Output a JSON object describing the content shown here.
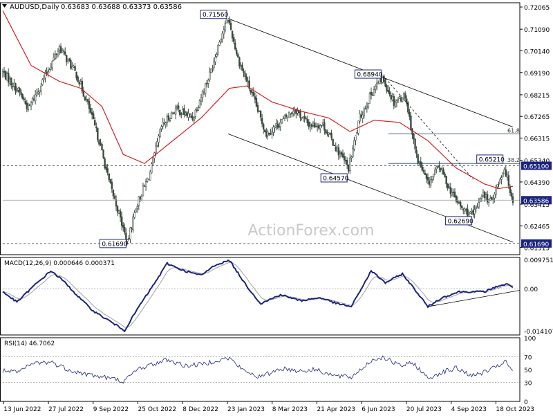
{
  "header": {
    "symbol_label": "AUDUSD,Daily",
    "ohlc_text": "0.63683 0.63688 0.63373 0.63586"
  },
  "watermark": "ActionForex.com",
  "colors": {
    "candle": "#3a4a3e",
    "ma": "#d62020",
    "macd": "#1a237e",
    "signal": "#a0a0a0",
    "rsi": "#1a237e",
    "grid_dash": "#9a9a9a",
    "fib": "#1f4a6e",
    "label_bg": "#1a237e",
    "label_text": "#ffffff"
  },
  "chart_data": [
    {
      "type": "line",
      "title": "AUDUSD,Daily",
      "subtitle": "0.63683 0.63688 0.63373 0.63586",
      "price_axis_ticks": [
        "0.72065",
        "0.71090",
        "0.70140",
        "0.69190",
        "0.68215",
        "0.67265",
        "0.66315",
        "0.65340",
        "0.64390",
        "0.63415",
        "0.62465",
        "0.61515"
      ],
      "x_tick_labels": [
        "13 Jun 2022",
        "27 Jul 2022",
        "9 Sep 2022",
        "25 Oct 2022",
        "8 Dec 2022",
        "23 Jan 2023",
        "8 Mar 2023",
        "21 Apr 2023",
        "6 Jun 2023",
        "20 Jul 2023",
        "4 Sep 2023",
        "18 Oct 2023"
      ],
      "ylim": [
        0.612,
        0.7225
      ],
      "close_anchors": [
        {
          "x": 0,
          "y": 0.692
        },
        {
          "x": 12,
          "y": 0.683
        },
        {
          "x": 18,
          "y": 0.676
        },
        {
          "x": 28,
          "y": 0.688
        },
        {
          "x": 40,
          "y": 0.703
        },
        {
          "x": 52,
          "y": 0.691
        },
        {
          "x": 60,
          "y": 0.678
        },
        {
          "x": 68,
          "y": 0.662
        },
        {
          "x": 75,
          "y": 0.644
        },
        {
          "x": 82,
          "y": 0.63
        },
        {
          "x": 88,
          "y": 0.6169
        },
        {
          "x": 94,
          "y": 0.633
        },
        {
          "x": 104,
          "y": 0.648
        },
        {
          "x": 112,
          "y": 0.668
        },
        {
          "x": 122,
          "y": 0.676
        },
        {
          "x": 134,
          "y": 0.672
        },
        {
          "x": 146,
          "y": 0.691
        },
        {
          "x": 154,
          "y": 0.708
        },
        {
          "x": 159,
          "y": 0.7156
        },
        {
          "x": 166,
          "y": 0.698
        },
        {
          "x": 176,
          "y": 0.682
        },
        {
          "x": 186,
          "y": 0.665
        },
        {
          "x": 196,
          "y": 0.67
        },
        {
          "x": 206,
          "y": 0.676
        },
        {
          "x": 216,
          "y": 0.669
        },
        {
          "x": 226,
          "y": 0.669
        },
        {
          "x": 236,
          "y": 0.658
        },
        {
          "x": 244,
          "y": 0.65
        },
        {
          "x": 252,
          "y": 0.672
        },
        {
          "x": 262,
          "y": 0.685
        },
        {
          "x": 268,
          "y": 0.6894
        },
        {
          "x": 276,
          "y": 0.679
        },
        {
          "x": 284,
          "y": 0.682
        },
        {
          "x": 292,
          "y": 0.655
        },
        {
          "x": 300,
          "y": 0.643
        },
        {
          "x": 308,
          "y": 0.651
        },
        {
          "x": 316,
          "y": 0.64
        },
        {
          "x": 324,
          "y": 0.632
        },
        {
          "x": 332,
          "y": 0.629
        },
        {
          "x": 338,
          "y": 0.639
        },
        {
          "x": 344,
          "y": 0.635
        },
        {
          "x": 350,
          "y": 0.644
        },
        {
          "x": 354,
          "y": 0.65
        },
        {
          "x": 357,
          "y": 0.643
        },
        {
          "x": 360,
          "y": 0.6359
        }
      ],
      "ma_anchors": [
        {
          "x": 0,
          "y": 0.719
        },
        {
          "x": 20,
          "y": 0.695
        },
        {
          "x": 40,
          "y": 0.688
        },
        {
          "x": 55,
          "y": 0.685
        },
        {
          "x": 70,
          "y": 0.677
        },
        {
          "x": 85,
          "y": 0.656
        },
        {
          "x": 100,
          "y": 0.652
        },
        {
          "x": 120,
          "y": 0.662
        },
        {
          "x": 140,
          "y": 0.672
        },
        {
          "x": 160,
          "y": 0.685
        },
        {
          "x": 172,
          "y": 0.686
        },
        {
          "x": 190,
          "y": 0.679
        },
        {
          "x": 210,
          "y": 0.675
        },
        {
          "x": 230,
          "y": 0.672
        },
        {
          "x": 245,
          "y": 0.666
        },
        {
          "x": 262,
          "y": 0.671
        },
        {
          "x": 280,
          "y": 0.67
        },
        {
          "x": 300,
          "y": 0.662
        },
        {
          "x": 320,
          "y": 0.65
        },
        {
          "x": 340,
          "y": 0.643
        },
        {
          "x": 350,
          "y": 0.641
        },
        {
          "x": 360,
          "y": 0.642
        }
      ],
      "horizontal_lines": [
        {
          "value": 0.651,
          "style": "dashed",
          "label": "0.65100"
        },
        {
          "value": 0.6169,
          "style": "dashed",
          "label": "0.61690"
        },
        {
          "value": 0.6359,
          "style": "solid",
          "label": "0.63586"
        }
      ],
      "fib_levels": [
        {
          "name": "61.8",
          "value": 0.665
        },
        {
          "name": "38.2",
          "value": 0.652
        }
      ],
      "swing_labels": [
        {
          "text": "0.71560",
          "x": 159,
          "value": 0.7156
        },
        {
          "text": "0.68940",
          "x": 268,
          "value": 0.6894
        },
        {
          "text": "0.65210",
          "x": 354,
          "value": 0.6521
        },
        {
          "text": "0.64570",
          "x": 244,
          "value": 0.6457
        },
        {
          "text": "0.62690",
          "x": 332,
          "value": 0.6269
        },
        {
          "text": "0.61690",
          "x": 88,
          "value": 0.6169
        }
      ],
      "trend_lines": [
        {
          "from": {
            "x": 159,
            "y": 0.7156
          },
          "to": {
            "x": 360,
            "y": 0.668
          }
        },
        {
          "from": {
            "x": 159,
            "y": 0.665
          },
          "to": {
            "x": 360,
            "y": 0.6175
          }
        },
        {
          "from": {
            "x": 270,
            "y": 0.6894
          },
          "to": {
            "x": 332,
            "y": 0.645
          },
          "style": "dashed"
        }
      ],
      "xlim": [
        0,
        360
      ]
    },
    {
      "type": "line",
      "title": "MACD(12,26,9) 0.000646 0.000371",
      "y_ticks": [
        "0.009751",
        "0.00",
        "-0.014107"
      ],
      "ylim": [
        -0.0155,
        0.0105
      ],
      "macd_anchors": [
        {
          "x": 0,
          "y": -0.001
        },
        {
          "x": 10,
          "y": -0.0045
        },
        {
          "x": 22,
          "y": 0.001
        },
        {
          "x": 34,
          "y": 0.006
        },
        {
          "x": 42,
          "y": 0.003
        },
        {
          "x": 54,
          "y": -0.003
        },
        {
          "x": 64,
          "y": -0.0075
        },
        {
          "x": 76,
          "y": -0.011
        },
        {
          "x": 86,
          "y": -0.014
        },
        {
          "x": 96,
          "y": -0.006
        },
        {
          "x": 106,
          "y": 0.001
        },
        {
          "x": 116,
          "y": 0.0085
        },
        {
          "x": 128,
          "y": 0.006
        },
        {
          "x": 140,
          "y": 0.0045
        },
        {
          "x": 150,
          "y": 0.008
        },
        {
          "x": 160,
          "y": 0.0095
        },
        {
          "x": 172,
          "y": 0.001
        },
        {
          "x": 182,
          "y": -0.005
        },
        {
          "x": 196,
          "y": -0.002
        },
        {
          "x": 210,
          "y": -0.004
        },
        {
          "x": 224,
          "y": -0.003
        },
        {
          "x": 236,
          "y": -0.005
        },
        {
          "x": 246,
          "y": -0.006
        },
        {
          "x": 260,
          "y": 0.006
        },
        {
          "x": 270,
          "y": 0.002
        },
        {
          "x": 282,
          "y": 0.005
        },
        {
          "x": 292,
          "y": -0.001
        },
        {
          "x": 300,
          "y": -0.006
        },
        {
          "x": 310,
          "y": -0.003
        },
        {
          "x": 322,
          "y": -0.001
        },
        {
          "x": 340,
          "y": -0.001
        },
        {
          "x": 350,
          "y": 0.001
        },
        {
          "x": 356,
          "y": 0.0015
        },
        {
          "x": 360,
          "y": 0.0006
        }
      ],
      "support_line": {
        "from": {
          "x": 300,
          "y": -0.006
        },
        "to": {
          "x": 360,
          "y": -0.001
        }
      }
    },
    {
      "type": "line",
      "title": "RSI(14) 46.7062",
      "y_ticks": [
        "100",
        "70",
        "50",
        "30",
        "0"
      ],
      "ylim": [
        0,
        100
      ],
      "rsi_anchors": [
        {
          "x": 0,
          "y": 48
        },
        {
          "x": 10,
          "y": 45
        },
        {
          "x": 22,
          "y": 60
        },
        {
          "x": 34,
          "y": 62
        },
        {
          "x": 44,
          "y": 52
        },
        {
          "x": 56,
          "y": 44
        },
        {
          "x": 66,
          "y": 40
        },
        {
          "x": 76,
          "y": 36
        },
        {
          "x": 86,
          "y": 32
        },
        {
          "x": 96,
          "y": 52
        },
        {
          "x": 106,
          "y": 58
        },
        {
          "x": 116,
          "y": 66
        },
        {
          "x": 128,
          "y": 56
        },
        {
          "x": 140,
          "y": 58
        },
        {
          "x": 150,
          "y": 64
        },
        {
          "x": 160,
          "y": 68
        },
        {
          "x": 170,
          "y": 48
        },
        {
          "x": 182,
          "y": 38
        },
        {
          "x": 196,
          "y": 52
        },
        {
          "x": 210,
          "y": 48
        },
        {
          "x": 222,
          "y": 50
        },
        {
          "x": 234,
          "y": 40
        },
        {
          "x": 246,
          "y": 38
        },
        {
          "x": 260,
          "y": 64
        },
        {
          "x": 268,
          "y": 70
        },
        {
          "x": 280,
          "y": 56
        },
        {
          "x": 290,
          "y": 60
        },
        {
          "x": 300,
          "y": 36
        },
        {
          "x": 310,
          "y": 46
        },
        {
          "x": 320,
          "y": 52
        },
        {
          "x": 332,
          "y": 40
        },
        {
          "x": 342,
          "y": 48
        },
        {
          "x": 350,
          "y": 55
        },
        {
          "x": 354,
          "y": 64
        },
        {
          "x": 360,
          "y": 47
        }
      ]
    }
  ]
}
